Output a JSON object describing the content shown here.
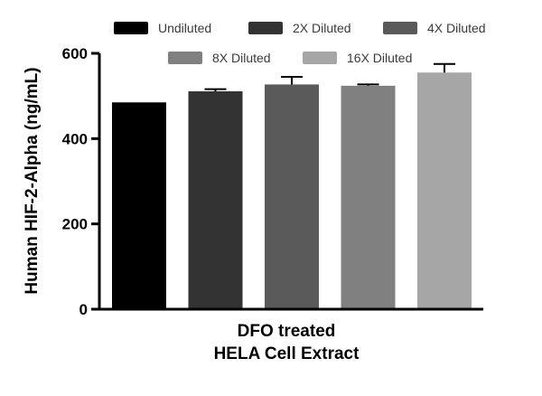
{
  "chart_data": {
    "type": "bar",
    "ylabel": "Human HIF-2-Alpha (ng/mL)",
    "xlabel": "",
    "category_label_lines": [
      "DFO treated",
      "HELA Cell Extract"
    ],
    "ylim": [
      0,
      600
    ],
    "yticks": [
      0,
      200,
      400,
      600
    ],
    "grid": false,
    "legend_position": "top",
    "series": [
      {
        "name": "Undiluted",
        "value": 485,
        "error": 0,
        "color": "#000000"
      },
      {
        "name": "2X Diluted",
        "value": 511,
        "error": 5,
        "color": "#333333"
      },
      {
        "name": "4X Diluted",
        "value": 527,
        "error": 18,
        "color": "#5a5a5a"
      },
      {
        "name": "8X Diluted",
        "value": 524,
        "error": 3,
        "color": "#808080"
      },
      {
        "name": "16X Diluted",
        "value": 555,
        "error": 20,
        "color": "#a6a6a6"
      }
    ]
  }
}
